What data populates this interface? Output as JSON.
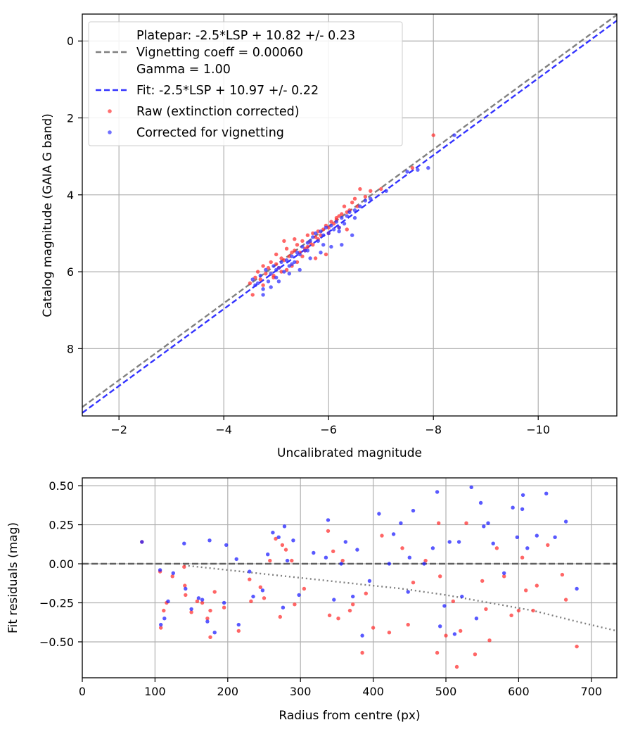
{
  "chart_data": [
    {
      "type": "scatter",
      "xlabel": "Uncalibrated magnitude",
      "ylabel": "Catalog magnitude (GAIA G band)",
      "xlim": [
        -1.3,
        -11.5
      ],
      "ylim": [
        9.75,
        -0.7
      ],
      "xticks": [
        -2,
        -4,
        -6,
        -8,
        -10
      ],
      "xtick_labels": [
        "−2",
        "−4",
        "−6",
        "−8",
        "−10"
      ],
      "yticks": [
        0,
        2,
        4,
        6,
        8
      ],
      "ytick_labels": [
        "0",
        "2",
        "4",
        "6",
        "8"
      ],
      "grid": true,
      "legend_position": "top-left",
      "legend": {
        "platepar": "Platepar: -2.5*LSP + 10.82 +/- 0.23",
        "vignetting": "Vignetting coeff = 0.00060",
        "gamma": "Gamma = 1.00",
        "fit": "Fit: -2.5*LSP + 10.97 +/- 0.22",
        "raw": "Raw (extinction corrected)",
        "corrected": "Corrected for vignetting"
      },
      "lines": [
        {
          "name": "Platepar",
          "style": "dashed",
          "color": "#808080",
          "slope": 1,
          "intercept": 10.82
        },
        {
          "name": "Fit",
          "style": "dashed",
          "color": "#3333ff",
          "slope": 1,
          "intercept": 10.97
        }
      ],
      "series": [
        {
          "name": "Raw (extinction corrected)",
          "color": "#ff3333",
          "x": [
            -4.5,
            -4.6,
            -4.65,
            -4.7,
            -4.75,
            -4.8,
            -4.85,
            -4.9,
            -4.95,
            -5.0,
            -5.0,
            -5.05,
            -5.1,
            -5.1,
            -5.15,
            -5.2,
            -5.2,
            -5.25,
            -5.3,
            -5.3,
            -5.35,
            -5.4,
            -5.4,
            -5.45,
            -5.5,
            -5.5,
            -5.55,
            -5.6,
            -5.6,
            -5.65,
            -5.7,
            -5.7,
            -5.75,
            -5.8,
            -5.8,
            -5.85,
            -5.9,
            -5.95,
            -6.0,
            -6.0,
            -6.05,
            -6.1,
            -6.15,
            -6.2,
            -6.2,
            -6.25,
            -6.3,
            -6.35,
            -6.4,
            -6.45,
            -6.5,
            -6.55,
            -6.6,
            -6.7,
            -6.8,
            -7.0,
            -7.6,
            -8.0,
            -4.55,
            -4.75,
            -4.95,
            -5.15,
            -5.35,
            -5.55,
            -5.75,
            -5.95,
            -6.15,
            -6.35
          ],
          "y": [
            6.3,
            6.15,
            6.0,
            6.2,
            5.85,
            6.05,
            5.9,
            5.75,
            6.1,
            5.8,
            5.55,
            5.9,
            5.65,
            6.0,
            5.7,
            5.4,
            5.95,
            5.6,
            5.5,
            5.85,
            5.45,
            5.3,
            5.75,
            5.5,
            5.2,
            5.6,
            5.4,
            5.05,
            5.35,
            5.25,
            5.0,
            5.3,
            5.1,
            4.95,
            5.15,
            5.05,
            4.9,
            4.8,
            4.85,
            5.0,
            4.7,
            4.75,
            4.6,
            4.55,
            4.85,
            4.5,
            4.3,
            4.45,
            4.4,
            4.2,
            4.1,
            4.3,
            3.85,
            4.05,
            3.9,
            3.85,
            3.3,
            2.45,
            6.6,
            6.35,
            6.15,
            5.2,
            5.15,
            5.45,
            5.65,
            5.55,
            4.65,
            4.9
          ]
        },
        {
          "name": "Corrected for vignetting",
          "color": "#3333ff",
          "x": [
            -4.55,
            -4.6,
            -4.7,
            -4.75,
            -4.8,
            -4.85,
            -4.9,
            -4.95,
            -5.0,
            -5.05,
            -5.1,
            -5.15,
            -5.2,
            -5.25,
            -5.3,
            -5.35,
            -5.4,
            -5.45,
            -5.5,
            -5.55,
            -5.6,
            -5.65,
            -5.7,
            -5.75,
            -5.8,
            -5.85,
            -5.9,
            -5.95,
            -6.0,
            -6.05,
            -6.1,
            -6.15,
            -6.2,
            -6.25,
            -6.3,
            -6.35,
            -6.4,
            -6.5,
            -6.6,
            -6.7,
            -6.8,
            -7.1,
            -7.5,
            -7.7,
            -7.9,
            -8.4,
            -4.75,
            -4.9,
            -5.05,
            -5.25,
            -5.45,
            -5.65,
            -5.85,
            -6.05,
            -6.25,
            -6.45,
            -4.65,
            -5.0,
            -5.3,
            -5.6,
            -5.9,
            -6.2,
            -6.5
          ],
          "y": [
            6.2,
            6.35,
            6.1,
            6.45,
            5.95,
            6.25,
            6.05,
            5.85,
            6.15,
            5.9,
            5.75,
            6.0,
            5.7,
            5.85,
            5.6,
            5.75,
            5.5,
            5.55,
            5.35,
            5.45,
            5.25,
            5.2,
            5.1,
            5.0,
            5.2,
            4.95,
            5.05,
            4.85,
            5.0,
            4.8,
            4.9,
            4.7,
            4.95,
            4.6,
            4.75,
            4.55,
            4.45,
            4.4,
            4.3,
            4.15,
            4.1,
            3.9,
            3.4,
            3.35,
            3.3,
            2.45,
            6.6,
            6.4,
            6.25,
            6.05,
            5.95,
            5.65,
            5.5,
            5.35,
            5.3,
            5.05,
            6.3,
            5.95,
            5.8,
            5.45,
            5.3,
            4.85,
            4.6
          ]
        }
      ]
    },
    {
      "type": "scatter",
      "xlabel": "Radius from centre (px)",
      "ylabel": "Fit residuals (mag)",
      "xlim": [
        0,
        735
      ],
      "ylim": [
        -0.73,
        0.55
      ],
      "xticks": [
        0,
        100,
        200,
        300,
        400,
        500,
        600,
        700
      ],
      "xtick_labels": [
        "0",
        "100",
        "200",
        "300",
        "400",
        "500",
        "600",
        "700"
      ],
      "yticks": [
        0.5,
        0.25,
        0.0,
        -0.25,
        -0.5
      ],
      "ytick_labels": [
        "0.50",
        "0.25",
        "0.00",
        "−0.25",
        "−0.50"
      ],
      "grid": true,
      "lines": [
        {
          "name": "zero",
          "style": "dashed",
          "color": "#606060",
          "x": [
            0,
            735
          ],
          "y": [
            0,
            0
          ]
        },
        {
          "name": "vignetting model",
          "style": "dotted",
          "color": "#808080",
          "x": [
            140,
            200,
            260,
            320,
            380,
            440,
            500,
            560,
            620,
            680,
            735
          ],
          "y": [
            -0.01,
            -0.04,
            -0.07,
            -0.1,
            -0.13,
            -0.16,
            -0.2,
            -0.25,
            -0.3,
            -0.37,
            -0.43
          ]
        }
      ],
      "series": [
        {
          "name": "Raw (extinction corrected)",
          "color": "#ff3333",
          "x": [
            82,
            107,
            108,
            112,
            116,
            124,
            140,
            141,
            142,
            150,
            158,
            165,
            172,
            176,
            176,
            182,
            195,
            215,
            230,
            232,
            245,
            250,
            258,
            266,
            272,
            275,
            280,
            288,
            292,
            305,
            338,
            340,
            345,
            352,
            358,
            368,
            372,
            385,
            390,
            400,
            412,
            422,
            440,
            448,
            455,
            472,
            488,
            490,
            492,
            500,
            510,
            515,
            520,
            528,
            540,
            550,
            555,
            560,
            570,
            580,
            590,
            600,
            605,
            610,
            620,
            625,
            640,
            660,
            665,
            680
          ],
          "y": [
            0.14,
            -0.05,
            -0.41,
            -0.3,
            -0.25,
            -0.08,
            -0.02,
            -0.14,
            -0.2,
            -0.31,
            -0.24,
            -0.25,
            -0.35,
            -0.47,
            -0.3,
            -0.18,
            -0.28,
            -0.43,
            -0.1,
            -0.24,
            -0.15,
            -0.22,
            0.02,
            0.16,
            -0.34,
            0.12,
            0.09,
            0.02,
            -0.26,
            -0.16,
            0.21,
            -0.33,
            0.08,
            -0.35,
            0.02,
            -0.3,
            -0.26,
            -0.57,
            -0.19,
            -0.41,
            0.18,
            -0.44,
            0.1,
            -0.39,
            -0.12,
            0.02,
            -0.57,
            0.26,
            -0.08,
            -0.46,
            -0.24,
            -0.66,
            -0.43,
            0.26,
            -0.58,
            -0.11,
            -0.29,
            -0.49,
            0.1,
            -0.08,
            -0.33,
            -0.3,
            0.04,
            -0.17,
            -0.3,
            -0.14,
            0.12,
            -0.07,
            -0.23,
            -0.53
          ]
        },
        {
          "name": "Corrected for vignetting",
          "color": "#2222ff",
          "x": [
            82,
            107,
            108,
            113,
            118,
            125,
            140,
            142,
            150,
            160,
            165,
            172,
            175,
            182,
            195,
            198,
            212,
            215,
            230,
            235,
            248,
            255,
            262,
            270,
            276,
            278,
            282,
            290,
            298,
            318,
            335,
            338,
            346,
            356,
            362,
            372,
            378,
            385,
            395,
            408,
            422,
            428,
            438,
            448,
            450,
            455,
            470,
            482,
            488,
            492,
            498,
            505,
            512,
            518,
            522,
            535,
            542,
            548,
            552,
            558,
            565,
            580,
            592,
            598,
            605,
            606,
            612,
            625,
            638,
            650,
            665,
            680
          ],
          "y": [
            0.14,
            -0.04,
            -0.39,
            -0.35,
            -0.24,
            -0.06,
            0.13,
            -0.16,
            -0.29,
            -0.22,
            -0.23,
            -0.37,
            0.15,
            -0.44,
            -0.25,
            0.12,
            0.03,
            -0.39,
            -0.05,
            -0.21,
            -0.17,
            0.06,
            0.2,
            0.17,
            -0.28,
            0.24,
            0.02,
            0.15,
            -0.2,
            0.07,
            0.04,
            0.28,
            -0.23,
            0.0,
            0.14,
            -0.21,
            0.09,
            -0.46,
            -0.11,
            0.32,
            0.0,
            0.19,
            0.26,
            -0.18,
            0.04,
            0.34,
            0.0,
            0.1,
            0.46,
            -0.4,
            -0.27,
            0.14,
            -0.45,
            0.14,
            -0.21,
            0.49,
            -0.35,
            0.39,
            0.24,
            0.26,
            0.13,
            -0.06,
            0.36,
            0.17,
            0.35,
            0.44,
            0.1,
            0.18,
            0.45,
            0.17,
            0.27,
            -0.16
          ]
        }
      ]
    }
  ]
}
